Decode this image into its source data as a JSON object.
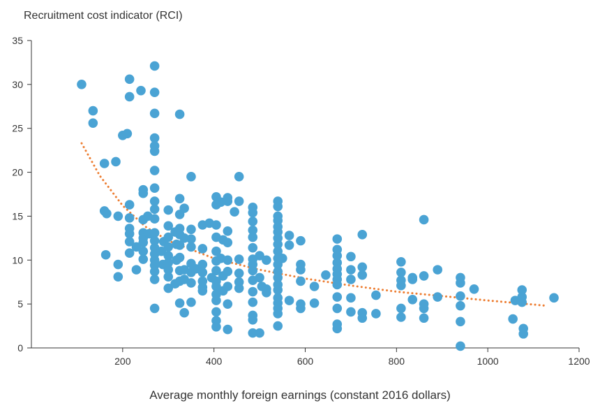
{
  "chart_data": {
    "type": "scatter",
    "ylabel": "Recruitment cost indicator (RCI)",
    "xlabel": "Average monthly foreign earnings (constant 2016 dollars)",
    "xlim": [
      0,
      1200
    ],
    "ylim": [
      0,
      35
    ],
    "x_ticks": [
      200,
      400,
      600,
      800,
      1000,
      1200
    ],
    "y_ticks": [
      0,
      5,
      10,
      15,
      20,
      25,
      30,
      35
    ],
    "grid": false,
    "colors": {
      "points": "#4aa3d4",
      "trend": "#ed7d31",
      "axis": "#333333"
    },
    "trend": {
      "style": "dotted",
      "x": [
        110,
        150,
        200,
        250,
        300,
        400,
        500,
        600,
        700,
        800,
        900,
        1000,
        1130
      ],
      "y": [
        23.3,
        19.6,
        16.2,
        13.8,
        12.2,
        10.2,
        8.9,
        7.9,
        7.1,
        6.4,
        5.9,
        5.4,
        4.8
      ]
    },
    "points": [
      [
        110,
        30.0
      ],
      [
        135,
        27.0
      ],
      [
        135,
        25.6
      ],
      [
        160,
        21.0
      ],
      [
        160,
        15.6
      ],
      [
        165,
        15.3
      ],
      [
        163,
        10.6
      ],
      [
        185,
        21.2
      ],
      [
        190,
        15.0
      ],
      [
        190,
        9.5
      ],
      [
        190,
        8.1
      ],
      [
        200,
        24.2
      ],
      [
        210,
        24.4
      ],
      [
        215,
        30.6
      ],
      [
        215,
        28.6
      ],
      [
        215,
        16.3
      ],
      [
        215,
        14.8
      ],
      [
        215,
        13.6
      ],
      [
        215,
        13.0
      ],
      [
        215,
        12.1
      ],
      [
        215,
        10.8
      ],
      [
        230,
        11.5
      ],
      [
        230,
        8.9
      ],
      [
        240,
        29.3
      ],
      [
        245,
        18.0
      ],
      [
        245,
        17.6
      ],
      [
        245,
        14.6
      ],
      [
        245,
        13.1
      ],
      [
        245,
        12.5
      ],
      [
        245,
        12.0
      ],
      [
        245,
        11.0
      ],
      [
        245,
        10.1
      ],
      [
        255,
        15.0
      ],
      [
        258,
        13.0
      ],
      [
        270,
        32.1
      ],
      [
        270,
        29.1
      ],
      [
        270,
        26.7
      ],
      [
        270,
        23.9
      ],
      [
        270,
        23.0
      ],
      [
        270,
        22.4
      ],
      [
        270,
        20.2
      ],
      [
        270,
        18.2
      ],
      [
        270,
        16.7
      ],
      [
        270,
        15.8
      ],
      [
        270,
        14.7
      ],
      [
        270,
        13.1
      ],
      [
        270,
        12.2
      ],
      [
        270,
        11.4
      ],
      [
        270,
        10.7
      ],
      [
        270,
        10.0
      ],
      [
        270,
        9.4
      ],
      [
        270,
        8.7
      ],
      [
        270,
        7.8
      ],
      [
        270,
        4.5
      ],
      [
        285,
        11.0
      ],
      [
        288,
        9.5
      ],
      [
        290,
        12.1
      ],
      [
        300,
        15.7
      ],
      [
        300,
        13.9
      ],
      [
        300,
        12.6
      ],
      [
        300,
        11.5
      ],
      [
        300,
        10.5
      ],
      [
        300,
        9.7
      ],
      [
        300,
        8.9
      ],
      [
        300,
        8.1
      ],
      [
        300,
        6.8
      ],
      [
        315,
        13.2
      ],
      [
        315,
        7.3
      ],
      [
        318,
        11.8
      ],
      [
        318,
        10.0
      ],
      [
        325,
        26.6
      ],
      [
        325,
        17.0
      ],
      [
        325,
        15.2
      ],
      [
        325,
        13.6
      ],
      [
        325,
        12.9
      ],
      [
        325,
        11.7
      ],
      [
        325,
        10.3
      ],
      [
        325,
        8.8
      ],
      [
        325,
        7.6
      ],
      [
        325,
        5.1
      ],
      [
        335,
        15.9
      ],
      [
        335,
        12.5
      ],
      [
        335,
        8.9
      ],
      [
        335,
        7.8
      ],
      [
        335,
        4.0
      ],
      [
        350,
        19.5
      ],
      [
        350,
        13.5
      ],
      [
        350,
        12.4
      ],
      [
        350,
        11.5
      ],
      [
        350,
        9.6
      ],
      [
        350,
        8.6
      ],
      [
        350,
        7.4
      ],
      [
        350,
        5.2
      ],
      [
        360,
        9.0
      ],
      [
        375,
        14.0
      ],
      [
        375,
        11.3
      ],
      [
        375,
        9.5
      ],
      [
        375,
        8.6
      ],
      [
        375,
        7.6
      ],
      [
        375,
        6.9
      ],
      [
        375,
        6.5
      ],
      [
        390,
        14.2
      ],
      [
        395,
        8.0
      ],
      [
        405,
        17.2
      ],
      [
        405,
        16.3
      ],
      [
        405,
        14.0
      ],
      [
        405,
        12.6
      ],
      [
        405,
        11.0
      ],
      [
        405,
        9.9
      ],
      [
        405,
        8.8
      ],
      [
        405,
        7.6
      ],
      [
        405,
        7.0
      ],
      [
        405,
        6.1
      ],
      [
        405,
        5.4
      ],
      [
        405,
        4.1
      ],
      [
        405,
        3.1
      ],
      [
        405,
        2.4
      ],
      [
        415,
        16.6
      ],
      [
        415,
        10.2
      ],
      [
        420,
        12.3
      ],
      [
        420,
        8.2
      ],
      [
        420,
        6.5
      ],
      [
        430,
        17.1
      ],
      [
        430,
        16.7
      ],
      [
        430,
        13.3
      ],
      [
        430,
        12.0
      ],
      [
        430,
        10.0
      ],
      [
        430,
        8.7
      ],
      [
        430,
        7.0
      ],
      [
        430,
        5.0
      ],
      [
        430,
        2.1
      ],
      [
        445,
        15.5
      ],
      [
        455,
        19.5
      ],
      [
        455,
        16.7
      ],
      [
        455,
        10.1
      ],
      [
        455,
        8.5
      ],
      [
        455,
        7.5
      ],
      [
        455,
        6.8
      ],
      [
        485,
        16.0
      ],
      [
        485,
        15.4
      ],
      [
        485,
        14.4
      ],
      [
        485,
        13.4
      ],
      [
        485,
        12.6
      ],
      [
        485,
        11.4
      ],
      [
        485,
        10.1
      ],
      [
        485,
        9.5
      ],
      [
        485,
        8.8
      ],
      [
        485,
        7.7
      ],
      [
        485,
        6.4
      ],
      [
        485,
        5.2
      ],
      [
        485,
        3.7
      ],
      [
        485,
        3.2
      ],
      [
        485,
        1.7
      ],
      [
        500,
        10.5
      ],
      [
        500,
        1.7
      ],
      [
        500,
        8.0
      ],
      [
        505,
        7.0
      ],
      [
        515,
        10.0
      ],
      [
        515,
        6.7
      ],
      [
        515,
        6.3
      ],
      [
        540,
        16.7
      ],
      [
        540,
        16.1
      ],
      [
        540,
        15.0
      ],
      [
        540,
        14.5
      ],
      [
        540,
        13.8
      ],
      [
        540,
        13.2
      ],
      [
        540,
        12.5
      ],
      [
        540,
        11.8
      ],
      [
        540,
        11.0
      ],
      [
        540,
        10.2
      ],
      [
        540,
        9.5
      ],
      [
        540,
        8.7
      ],
      [
        540,
        8.0
      ],
      [
        540,
        7.2
      ],
      [
        540,
        6.6
      ],
      [
        540,
        5.7
      ],
      [
        540,
        5.1
      ],
      [
        540,
        4.5
      ],
      [
        540,
        3.9
      ],
      [
        540,
        2.5
      ],
      [
        550,
        10.2
      ],
      [
        565,
        12.8
      ],
      [
        565,
        11.7
      ],
      [
        565,
        5.4
      ],
      [
        590,
        12.2
      ],
      [
        590,
        9.5
      ],
      [
        590,
        8.9
      ],
      [
        590,
        7.6
      ],
      [
        590,
        5.0
      ],
      [
        590,
        4.5
      ],
      [
        620,
        7.0
      ],
      [
        620,
        5.1
      ],
      [
        645,
        8.3
      ],
      [
        670,
        12.4
      ],
      [
        670,
        11.2
      ],
      [
        670,
        10.5
      ],
      [
        670,
        9.7
      ],
      [
        670,
        9.0
      ],
      [
        670,
        8.4
      ],
      [
        670,
        7.8
      ],
      [
        670,
        7.2
      ],
      [
        670,
        5.8
      ],
      [
        670,
        4.5
      ],
      [
        670,
        2.7
      ],
      [
        670,
        2.2
      ],
      [
        700,
        10.4
      ],
      [
        700,
        8.9
      ],
      [
        700,
        7.8
      ],
      [
        700,
        5.7
      ],
      [
        700,
        4.1
      ],
      [
        725,
        12.9
      ],
      [
        725,
        9.2
      ],
      [
        725,
        8.3
      ],
      [
        725,
        4.0
      ],
      [
        725,
        3.4
      ],
      [
        755,
        6.0
      ],
      [
        755,
        3.9
      ],
      [
        810,
        9.8
      ],
      [
        810,
        8.6
      ],
      [
        810,
        7.7
      ],
      [
        810,
        7.1
      ],
      [
        810,
        4.5
      ],
      [
        810,
        3.5
      ],
      [
        835,
        8.0
      ],
      [
        835,
        7.8
      ],
      [
        835,
        5.5
      ],
      [
        860,
        14.6
      ],
      [
        860,
        8.2
      ],
      [
        860,
        5.0
      ],
      [
        860,
        4.5
      ],
      [
        860,
        3.4
      ],
      [
        890,
        8.9
      ],
      [
        890,
        5.8
      ],
      [
        940,
        8.0
      ],
      [
        940,
        7.4
      ],
      [
        940,
        5.9
      ],
      [
        940,
        4.8
      ],
      [
        940,
        3.0
      ],
      [
        940,
        0.2
      ],
      [
        970,
        6.7
      ],
      [
        1055,
        3.3
      ],
      [
        1060,
        5.4
      ],
      [
        1075,
        6.6
      ],
      [
        1075,
        5.8
      ],
      [
        1075,
        5.2
      ],
      [
        1078,
        2.2
      ],
      [
        1078,
        1.6
      ],
      [
        1145,
        5.7
      ]
    ]
  }
}
